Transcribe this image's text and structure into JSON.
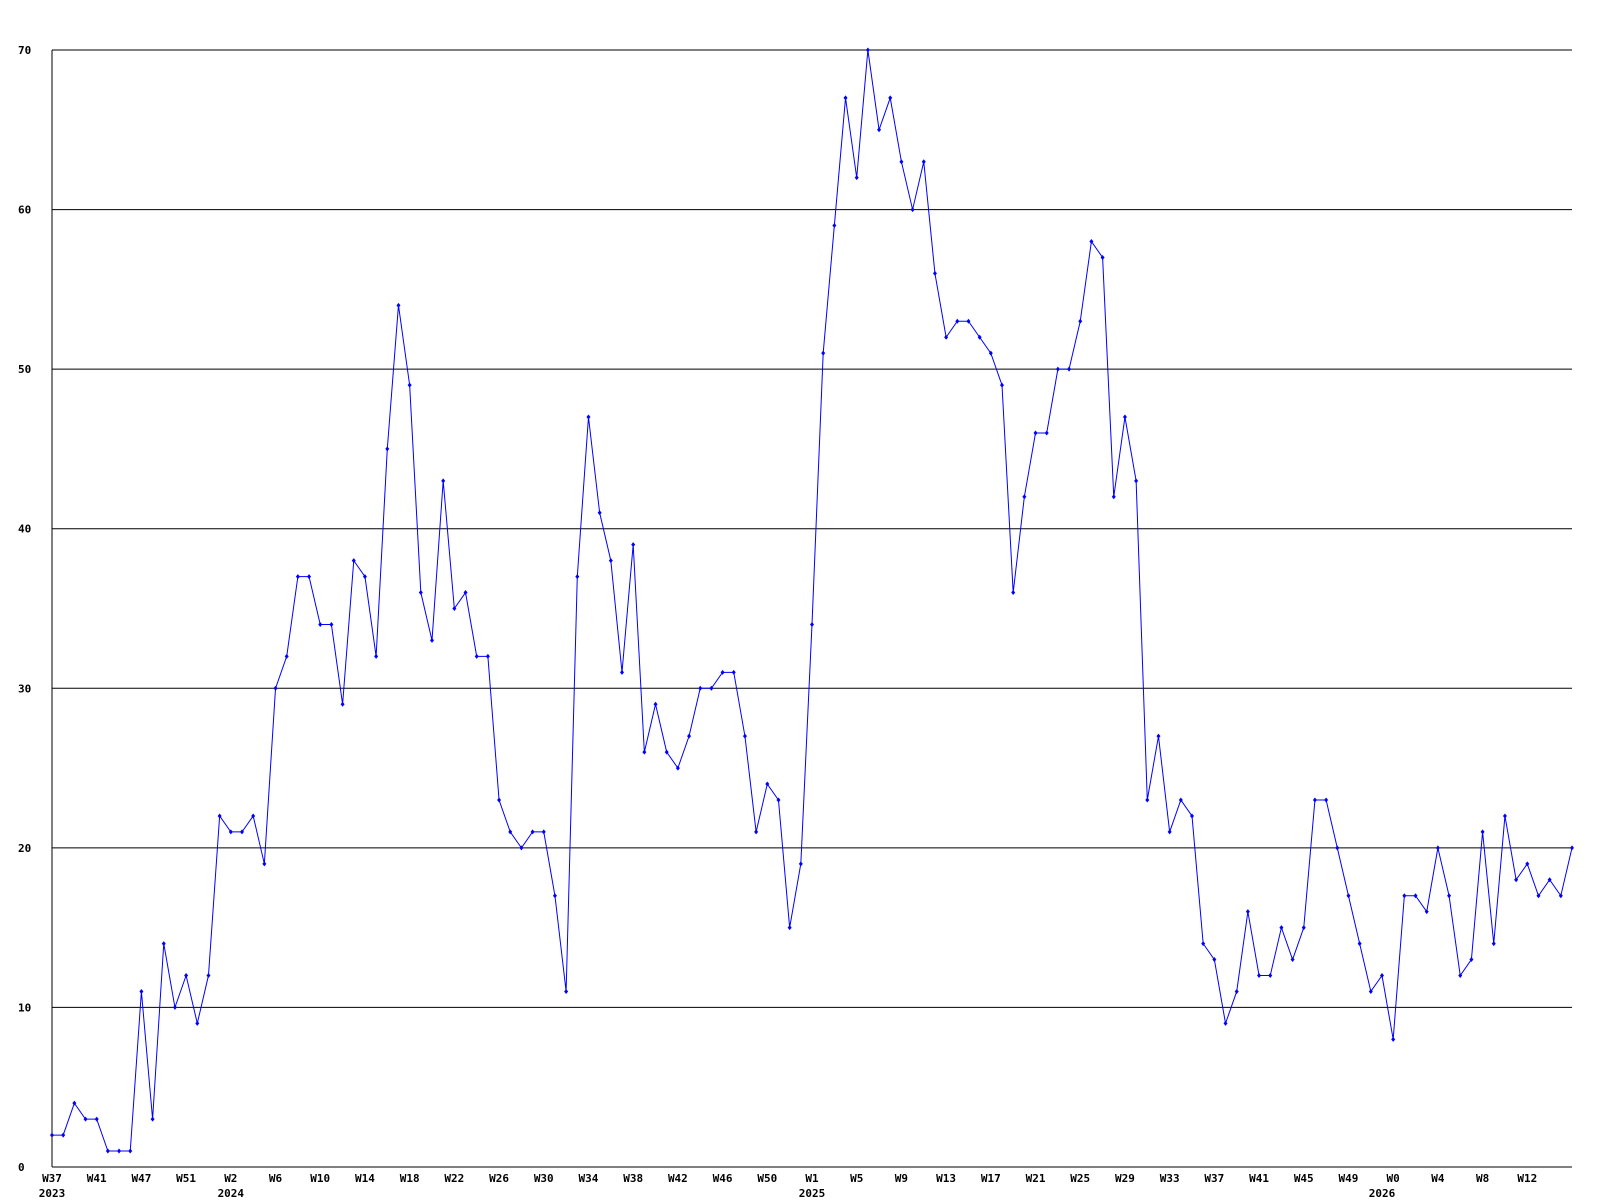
{
  "chart_data": {
    "type": "line",
    "categories": [
      "W37",
      null,
      null,
      null,
      "W41",
      null,
      null,
      null,
      "W47",
      null,
      null,
      null,
      "W51",
      null,
      null,
      null,
      "W2",
      null,
      null,
      null,
      "W6",
      null,
      null,
      null,
      "W10",
      null,
      null,
      null,
      "W14",
      null,
      null,
      null,
      "W18",
      null,
      null,
      null,
      "W22",
      null,
      null,
      null,
      "W26",
      null,
      null,
      null,
      "W30",
      null,
      null,
      null,
      "W34",
      null,
      null,
      null,
      "W38",
      null,
      null,
      null,
      "W42",
      null,
      null,
      null,
      "W46",
      null,
      null,
      null,
      "W50",
      null,
      null,
      null,
      "W1",
      null,
      null,
      null,
      "W5",
      null,
      null,
      null,
      "W9",
      null,
      null,
      null,
      "W13",
      null,
      null,
      null,
      "W17",
      null,
      null,
      null,
      "W21",
      null,
      null,
      null,
      "W25",
      null,
      null,
      null,
      "W29",
      null,
      null,
      null,
      "W33",
      null,
      null,
      null,
      "W37",
      null,
      null,
      null,
      "W41",
      null,
      null,
      null,
      "W45",
      null,
      null,
      null,
      "W49",
      null,
      null,
      null,
      "W0",
      null,
      null,
      null,
      "W4",
      null,
      null,
      null,
      "W8",
      null,
      null,
      null,
      "W12",
      null,
      null,
      null,
      null
    ],
    "years": [
      "2023",
      null,
      null,
      null,
      null,
      null,
      null,
      null,
      null,
      null,
      null,
      null,
      null,
      null,
      null,
      null,
      "2024",
      null,
      null,
      null,
      null,
      null,
      null,
      null,
      null,
      null,
      null,
      null,
      null,
      null,
      null,
      null,
      null,
      null,
      null,
      null,
      null,
      null,
      null,
      null,
      null,
      null,
      null,
      null,
      null,
      null,
      null,
      null,
      null,
      null,
      null,
      null,
      null,
      null,
      null,
      null,
      null,
      null,
      null,
      null,
      null,
      null,
      null,
      null,
      null,
      null,
      null,
      null,
      "2025",
      null,
      null,
      null,
      null,
      null,
      null,
      null,
      null,
      null,
      null,
      null,
      null,
      null,
      null,
      null,
      null,
      null,
      null,
      null,
      null,
      null,
      null,
      null,
      null,
      null,
      null,
      null,
      null,
      null,
      null,
      null,
      null,
      null,
      null,
      null,
      null,
      null,
      null,
      null,
      null,
      null,
      null,
      null,
      null,
      null,
      null,
      null,
      null,
      null,
      null,
      "2026",
      null,
      null,
      null,
      null,
      null,
      null,
      null,
      null,
      null,
      null,
      null,
      null,
      null,
      null,
      null,
      null
    ],
    "series": [
      {
        "color": "#0000ff",
        "values": [
          2,
          2,
          4,
          3,
          3,
          1,
          1,
          1,
          11,
          3,
          14,
          10,
          12,
          9,
          12,
          22,
          21,
          21,
          22,
          19,
          30,
          32,
          37,
          37,
          34,
          34,
          29,
          38,
          37,
          32,
          45,
          54,
          49,
          36,
          33,
          43,
          35,
          36,
          32,
          32,
          23,
          21,
          20,
          21,
          21,
          17,
          11,
          37,
          47,
          41,
          38,
          31,
          39,
          26,
          29,
          26,
          25,
          27,
          30,
          30,
          31,
          31,
          27,
          21,
          24,
          23,
          15,
          19,
          34,
          51,
          59,
          67,
          62,
          70,
          65,
          67,
          63,
          60,
          63,
          56,
          52,
          53,
          53,
          52,
          51,
          49,
          36,
          42,
          46,
          46,
          50,
          50,
          53,
          58,
          57,
          42,
          47,
          43,
          23,
          27,
          21,
          23,
          22,
          14,
          13,
          9,
          11,
          16,
          12,
          12,
          15,
          13,
          15,
          23,
          23,
          20,
          17,
          14,
          11,
          12,
          8,
          17,
          17,
          16,
          20,
          17,
          12,
          13,
          21,
          14,
          22,
          18,
          19,
          17,
          18,
          17,
          20
        ]
      }
    ],
    "ylim": [
      0,
      70
    ],
    "yticks": [
      0,
      10,
      20,
      30,
      40,
      50,
      60,
      70
    ],
    "grid": true
  }
}
